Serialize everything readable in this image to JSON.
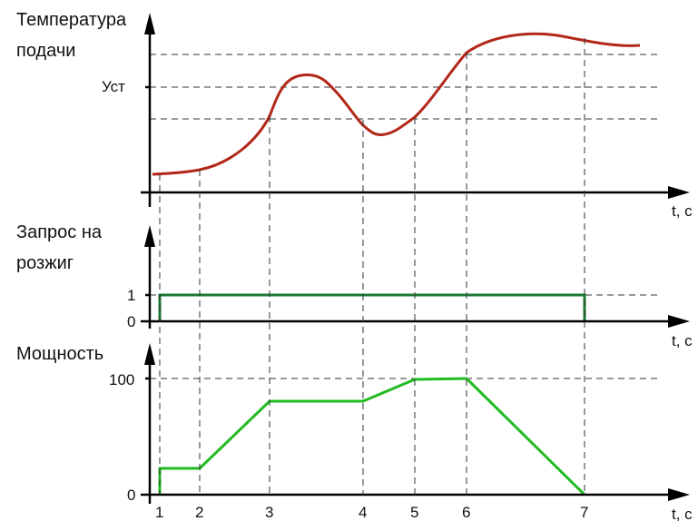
{
  "labels": {
    "temp_title_line1": "Температура",
    "temp_title_line2": "подачи",
    "setpoint": "Уст",
    "time_axis": "t, c",
    "request_title_line1": "Запрос на",
    "request_title_line2": "розжиг",
    "request_high": "1",
    "request_low": "0",
    "power_title": "Мощность",
    "power_max": "100",
    "power_zero": "0"
  },
  "time_markers": [
    "1",
    "2",
    "3",
    "4",
    "5",
    "6",
    "7"
  ],
  "colors": {
    "temperature": "#b22818",
    "request": "#1a7a30",
    "power": "#22bb22",
    "axis": "#000000",
    "guide": "#333333"
  },
  "chart_data": [
    {
      "type": "line",
      "name": "temperature",
      "x": [
        1,
        2,
        3,
        3.5,
        4,
        4.5,
        5,
        6,
        7,
        7.5
      ],
      "y_levels": [
        "low",
        "low",
        "mid",
        "peak",
        "mid",
        "min",
        "mid",
        "high",
        "high",
        "high"
      ]
    },
    {
      "type": "line",
      "name": "request",
      "x": [
        1,
        7
      ],
      "values": [
        1,
        1
      ],
      "y_ticks": [
        "0",
        "1"
      ]
    },
    {
      "type": "line",
      "name": "power",
      "x": [
        1,
        1,
        2,
        3,
        4,
        5,
        6,
        7
      ],
      "values": [
        0,
        20,
        20,
        80,
        80,
        98,
        100,
        0
      ],
      "y_ticks": [
        "0",
        "100"
      ]
    }
  ]
}
